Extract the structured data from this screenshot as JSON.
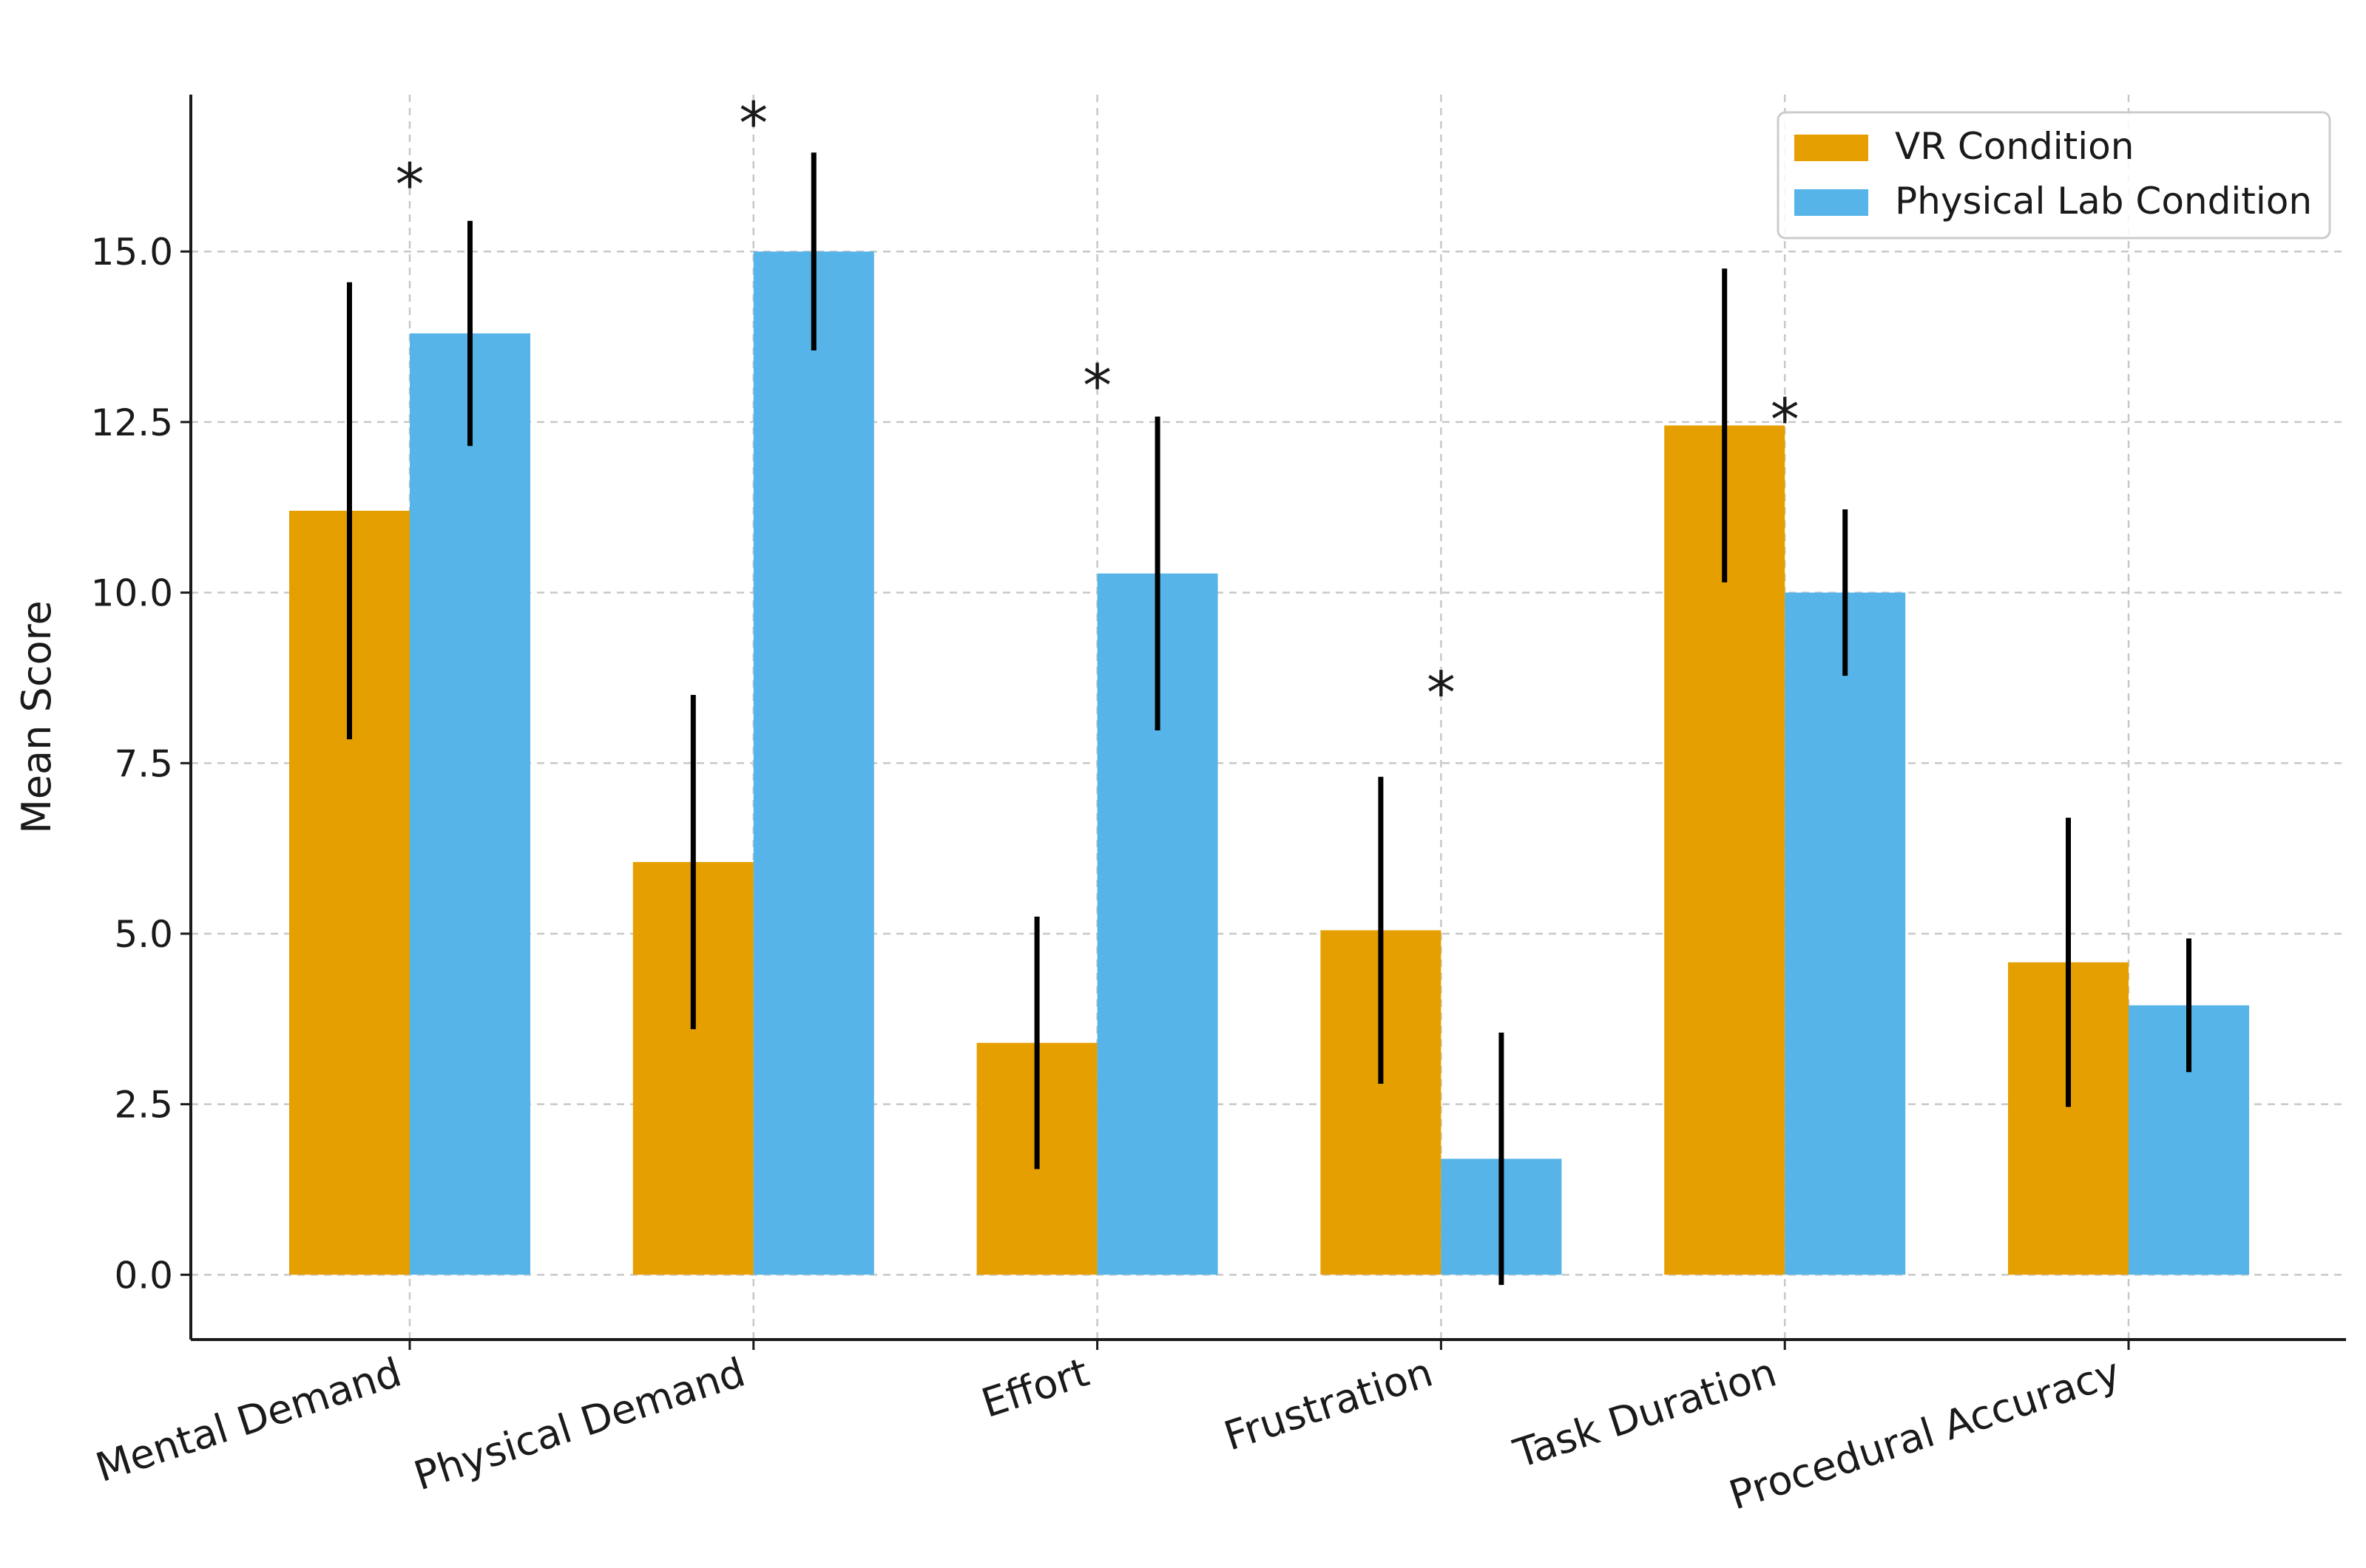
{
  "chart_data": {
    "type": "bar",
    "title": "",
    "xlabel": "",
    "ylabel": "Mean Score",
    "ylim": [
      -0.95,
      17.3
    ],
    "yticks": [
      "0.0",
      "2.5",
      "5.0",
      "7.5",
      "10.0",
      "12.5",
      "15.0"
    ],
    "grid": true,
    "legend_position": "top-right",
    "categories": [
      "Mental Demand",
      "Physical Demand",
      "Effort",
      "Frustration",
      "Task Duration",
      "Procedural Accuracy"
    ],
    "series": [
      {
        "name": "VR Condition",
        "color": "#E69F00",
        "values": [
          11.2,
          6.05,
          3.4,
          5.05,
          12.45,
          4.58
        ],
        "errors": [
          3.35,
          2.45,
          1.85,
          2.25,
          2.3,
          2.12
        ]
      },
      {
        "name": "Physical Lab Condition",
        "color": "#56B4E9",
        "values": [
          13.8,
          15.0,
          10.28,
          1.7,
          10.0,
          3.95
        ],
        "errors": [
          1.65,
          1.45,
          2.3,
          1.85,
          1.22,
          0.98
        ]
      }
    ],
    "annotations": [
      {
        "category": "Mental Demand",
        "text": "*",
        "y": 16.25
      },
      {
        "category": "Physical Demand",
        "text": "*",
        "y": 17.15
      },
      {
        "category": "Effort",
        "text": "*",
        "y": 13.3
      },
      {
        "category": "Frustration",
        "text": "*",
        "y": 8.8
      },
      {
        "category": "Task Duration",
        "text": "*",
        "y": 12.8
      }
    ]
  }
}
